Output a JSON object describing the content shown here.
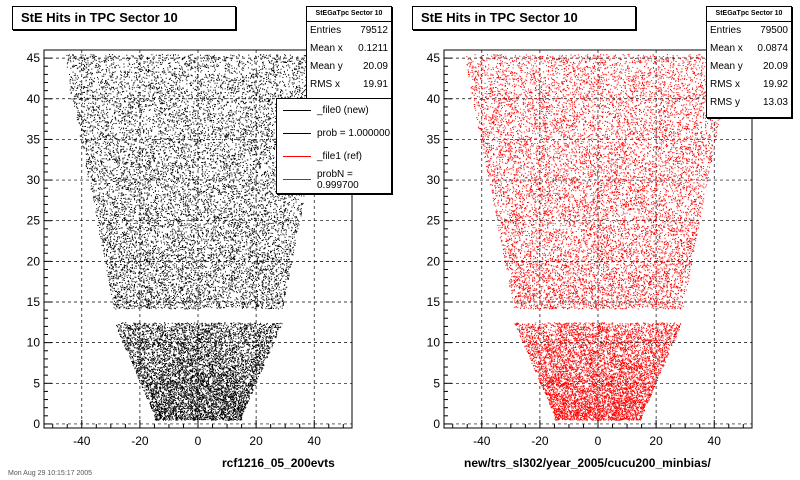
{
  "chart_data": [
    {
      "type": "scatter",
      "title": "StE Hits in TPC Sector 10",
      "xlabel": "rcf1216_05_200evts",
      "ylabel": "",
      "xlim": [
        -53,
        53
      ],
      "ylim": [
        -0.5,
        46
      ],
      "xticks": [
        -40,
        -20,
        0,
        20,
        40
      ],
      "yticks": [
        0,
        5,
        10,
        15,
        20,
        25,
        30,
        35,
        40,
        45
      ],
      "grid": true,
      "marker_color": "#000000",
      "stats": {
        "header": "StEGaTpc Sector 10",
        "rows": [
          {
            "label": "Entries",
            "value": "79512"
          },
          {
            "label": "Mean x",
            "value": "0.1211"
          },
          {
            "label": "Mean y",
            "value": "20.09"
          },
          {
            "label": "RMS x",
            "value": "19.91"
          }
        ]
      },
      "legend": {
        "placement": "top-right",
        "entries": [
          {
            "label": "_file0 (new)",
            "color": "#000000"
          },
          {
            "label": "prob = 1.000000",
            "color": "#000000"
          },
          {
            "label": "_file1 (ref)",
            "color": "#ff0000"
          },
          {
            "label": "probN = 0.999700",
            "color": "#ff0000"
          }
        ]
      }
    },
    {
      "type": "scatter",
      "title": "StE Hits in TPC Sector 10",
      "xlabel": "new/trs_sl302/year_2005/cucu200_minbias/",
      "ylabel": "",
      "xlim": [
        -53,
        53
      ],
      "ylim": [
        -0.5,
        46
      ],
      "xticks": [
        -40,
        -20,
        0,
        20,
        40
      ],
      "yticks": [
        0,
        5,
        10,
        15,
        20,
        25,
        30,
        35,
        40,
        45
      ],
      "grid": true,
      "marker_color": "#ff0000",
      "stats": {
        "header": "StEGaTpc Sector 10",
        "rows": [
          {
            "label": "Entries",
            "value": "79500"
          },
          {
            "label": "Mean x",
            "value": "0.0874"
          },
          {
            "label": "Mean y",
            "value": "20.09"
          },
          {
            "label": "RMS x",
            "value": "19.92"
          },
          {
            "label": "RMS y",
            "value": "13.03"
          }
        ]
      }
    }
  ],
  "footer": "Mon Aug 29 10:15:17 2005"
}
